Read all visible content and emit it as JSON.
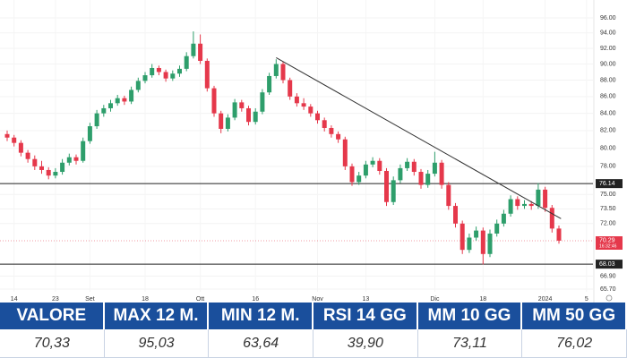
{
  "chart_data": {
    "type": "candlestick",
    "log_scale": true,
    "grid": true,
    "up_color": "#2e9e6b",
    "down_color": "#e5384b",
    "ylim": [
      64.96,
      97.45
    ],
    "yticks": [
      {
        "value": 96,
        "label": "96.00"
      },
      {
        "value": 94,
        "label": "94.00"
      },
      {
        "value": 92,
        "label": "92.00"
      },
      {
        "value": 90,
        "label": "90.00"
      },
      {
        "value": 88,
        "label": "88.00"
      },
      {
        "value": 86,
        "label": "86.00"
      },
      {
        "value": 84,
        "label": "84.00"
      },
      {
        "value": 82,
        "label": "82.00"
      },
      {
        "value": 80,
        "label": "80.00"
      },
      {
        "value": 78,
        "label": "78.00"
      },
      {
        "value": 75,
        "label": "75.00"
      },
      {
        "value": 73.5,
        "label": "73.50"
      },
      {
        "value": 72,
        "label": "72.00"
      },
      {
        "value": 66.9,
        "label": "66.90"
      },
      {
        "value": 65.7,
        "label": "65.70"
      }
    ],
    "categories": [
      null,
      "14",
      null,
      null,
      null,
      null,
      null,
      "23",
      null,
      null,
      null,
      null,
      "Set",
      null,
      null,
      null,
      null,
      null,
      null,
      null,
      "18",
      null,
      null,
      null,
      null,
      null,
      null,
      null,
      "Ott",
      null,
      null,
      null,
      null,
      null,
      null,
      null,
      "16",
      null,
      null,
      null,
      null,
      null,
      null,
      null,
      null,
      "Nov",
      null,
      null,
      null,
      null,
      null,
      null,
      "13",
      null,
      null,
      null,
      null,
      null,
      null,
      null,
      null,
      null,
      "Dic",
      null,
      null,
      null,
      null,
      null,
      null,
      "18",
      null,
      null,
      null,
      null,
      null,
      null,
      null,
      null,
      "2024",
      null,
      null,
      null,
      null,
      null,
      "5"
    ],
    "candles": [
      [
        81.6,
        82.0,
        80.8,
        81.2
      ],
      [
        81.2,
        81.5,
        80.2,
        80.6
      ],
      [
        80.6,
        80.9,
        79.1,
        79.5
      ],
      [
        79.5,
        79.8,
        78.4,
        78.8
      ],
      [
        78.8,
        79.2,
        77.6,
        78.0
      ],
      [
        78.0,
        78.6,
        77.2,
        77.6
      ],
      [
        77.6,
        77.9,
        76.6,
        77.0
      ],
      [
        77.0,
        77.8,
        76.7,
        77.4
      ],
      [
        77.4,
        78.8,
        77.1,
        78.4
      ],
      [
        78.4,
        79.4,
        78.1,
        79.0
      ],
      [
        79.0,
        79.3,
        78.2,
        78.6
      ],
      [
        78.6,
        81.2,
        78.4,
        80.8
      ],
      [
        80.8,
        82.9,
        80.5,
        82.5
      ],
      [
        82.5,
        84.4,
        82.2,
        84.0
      ],
      [
        84.0,
        85.0,
        83.6,
        84.6
      ],
      [
        84.6,
        85.6,
        84.2,
        85.2
      ],
      [
        85.2,
        86.2,
        84.9,
        85.8
      ],
      [
        85.8,
        86.1,
        85.0,
        85.4
      ],
      [
        85.4,
        87.2,
        85.1,
        86.8
      ],
      [
        86.8,
        88.3,
        86.5,
        87.9
      ],
      [
        87.9,
        89.0,
        87.6,
        88.6
      ],
      [
        88.6,
        90.0,
        88.3,
        89.5
      ],
      [
        89.5,
        89.8,
        88.6,
        89.0
      ],
      [
        89.0,
        89.3,
        87.8,
        88.2
      ],
      [
        88.2,
        89.2,
        87.9,
        88.8
      ],
      [
        88.8,
        89.8,
        88.4,
        89.4
      ],
      [
        89.4,
        91.5,
        89.1,
        91.0
      ],
      [
        91.0,
        94.2,
        90.7,
        92.6
      ],
      [
        92.6,
        93.8,
        90.0,
        90.4
      ],
      [
        90.4,
        90.7,
        86.6,
        87.0
      ],
      [
        87.0,
        87.3,
        83.6,
        84.0
      ],
      [
        84.0,
        84.3,
        81.7,
        82.2
      ],
      [
        82.2,
        83.9,
        81.9,
        83.5
      ],
      [
        83.5,
        85.7,
        83.2,
        85.3
      ],
      [
        85.3,
        85.6,
        84.2,
        84.6
      ],
      [
        84.6,
        84.9,
        82.6,
        83.0
      ],
      [
        83.0,
        84.6,
        82.7,
        84.2
      ],
      [
        84.2,
        86.9,
        83.9,
        86.5
      ],
      [
        86.5,
        88.9,
        86.2,
        88.5
      ],
      [
        88.5,
        90.6,
        88.2,
        90.0
      ],
      [
        90.0,
        90.3,
        87.6,
        88.0
      ],
      [
        88.0,
        88.3,
        85.6,
        86.0
      ],
      [
        86.0,
        86.4,
        84.8,
        85.2
      ],
      [
        85.2,
        85.8,
        84.4,
        84.8
      ],
      [
        84.8,
        85.1,
        83.6,
        84.0
      ],
      [
        84.0,
        84.3,
        82.8,
        83.2
      ],
      [
        83.2,
        83.5,
        81.9,
        82.3
      ],
      [
        82.3,
        82.6,
        81.2,
        81.6
      ],
      [
        81.6,
        81.9,
        80.6,
        81.0
      ],
      [
        81.0,
        81.3,
        77.6,
        78.0
      ],
      [
        78.0,
        78.3,
        75.9,
        76.3
      ],
      [
        76.3,
        77.4,
        76.0,
        77.0
      ],
      [
        77.0,
        78.6,
        76.7,
        78.2
      ],
      [
        78.2,
        79.0,
        77.9,
        78.6
      ],
      [
        78.6,
        78.9,
        77.1,
        77.5
      ],
      [
        77.5,
        77.8,
        73.8,
        74.2
      ],
      [
        74.2,
        76.9,
        73.9,
        76.5
      ],
      [
        76.5,
        78.2,
        76.2,
        77.8
      ],
      [
        77.8,
        78.9,
        77.5,
        78.5
      ],
      [
        78.5,
        78.8,
        77.0,
        77.4
      ],
      [
        77.4,
        77.7,
        75.6,
        76.0
      ],
      [
        76.0,
        77.6,
        75.7,
        77.2
      ],
      [
        77.2,
        79.6,
        76.9,
        78.4
      ],
      [
        78.4,
        78.7,
        75.6,
        76.0
      ],
      [
        76.0,
        76.3,
        73.4,
        73.8
      ],
      [
        73.8,
        74.1,
        71.6,
        72.0
      ],
      [
        72.0,
        72.3,
        69.0,
        69.4
      ],
      [
        69.4,
        71.0,
        69.1,
        70.6
      ],
      [
        70.6,
        71.7,
        70.3,
        71.3
      ],
      [
        71.3,
        71.6,
        68.0,
        69.0
      ],
      [
        69.0,
        71.4,
        68.7,
        71.0
      ],
      [
        71.0,
        72.4,
        70.7,
        72.0
      ],
      [
        72.0,
        73.4,
        71.7,
        73.0
      ],
      [
        73.0,
        74.9,
        72.7,
        74.5
      ],
      [
        74.5,
        74.8,
        73.4,
        73.8
      ],
      [
        73.8,
        74.4,
        73.5,
        74.0
      ],
      [
        74.0,
        74.3,
        73.4,
        73.8
      ],
      [
        73.8,
        76.2,
        73.5,
        75.5
      ],
      [
        75.5,
        75.8,
        73.2,
        73.6
      ],
      [
        73.6,
        73.9,
        71.1,
        71.5
      ],
      [
        71.5,
        71.8,
        70.0,
        70.3
      ],
      null,
      null,
      null,
      null
    ],
    "hlines": [
      76.14,
      68.03
    ],
    "price_line": {
      "value": 70.29,
      "time": "16:32:46"
    },
    "trendline": {
      "x": [
        39,
        80.3
      ],
      "y": [
        90.8,
        72.5
      ]
    }
  },
  "table": {
    "headers": [
      "VALORE",
      "MAX 12 M.",
      "MIN 12 M.",
      "RSI 14 GG",
      "MM 10 GG",
      "MM 50 GG"
    ],
    "values": [
      "70,33",
      "95,03",
      "63,64",
      "39,90",
      "73,11",
      "76,02"
    ]
  }
}
